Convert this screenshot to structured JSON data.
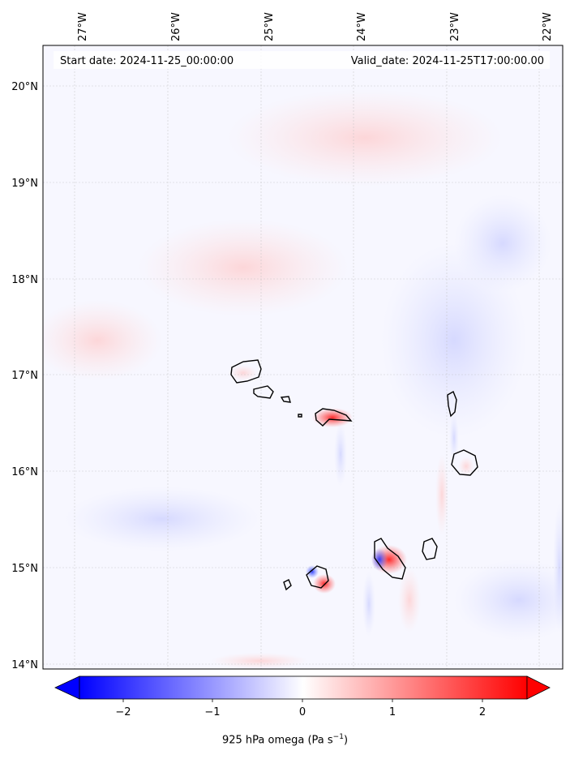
{
  "map": {
    "start_date": "Start date: 2024-11-25_00:00:00",
    "valid_date": "Valid_date: 2024-11-25T17:00:00.00",
    "lon_labels": [
      "27°W",
      "26°W",
      "25°W",
      "24°W",
      "23°W",
      "22°W"
    ],
    "lat_labels": [
      "20°N",
      "19°N",
      "18°N",
      "17°N",
      "16°N",
      "15°N",
      "14°N"
    ],
    "lon_extent": [
      -27.35,
      -21.75
    ],
    "lat_extent": [
      13.95,
      20.4
    ],
    "gridlines": true,
    "projection": "PlateCarree"
  },
  "colorbar": {
    "label": "925 hPa omega (Pa s",
    "label_exponent": "−1",
    "label_suffix": ")",
    "tick_labels": [
      "−2",
      "−1",
      "0",
      "1",
      "2"
    ],
    "tick_values": [
      -2,
      -1,
      0,
      1,
      2
    ],
    "range": [
      -2.5,
      2.5
    ],
    "extend": "both",
    "colormap": "bwr",
    "colors": {
      "min": "#0000ff",
      "mid": "#ffffff",
      "max": "#ff0000"
    }
  },
  "islands": [
    "Santo Antão",
    "São Vicente",
    "Santa Luzia",
    "São Nicolau",
    "Sal",
    "Boa Vista",
    "Brava",
    "Fogo",
    "Santiago",
    "Maio"
  ]
}
